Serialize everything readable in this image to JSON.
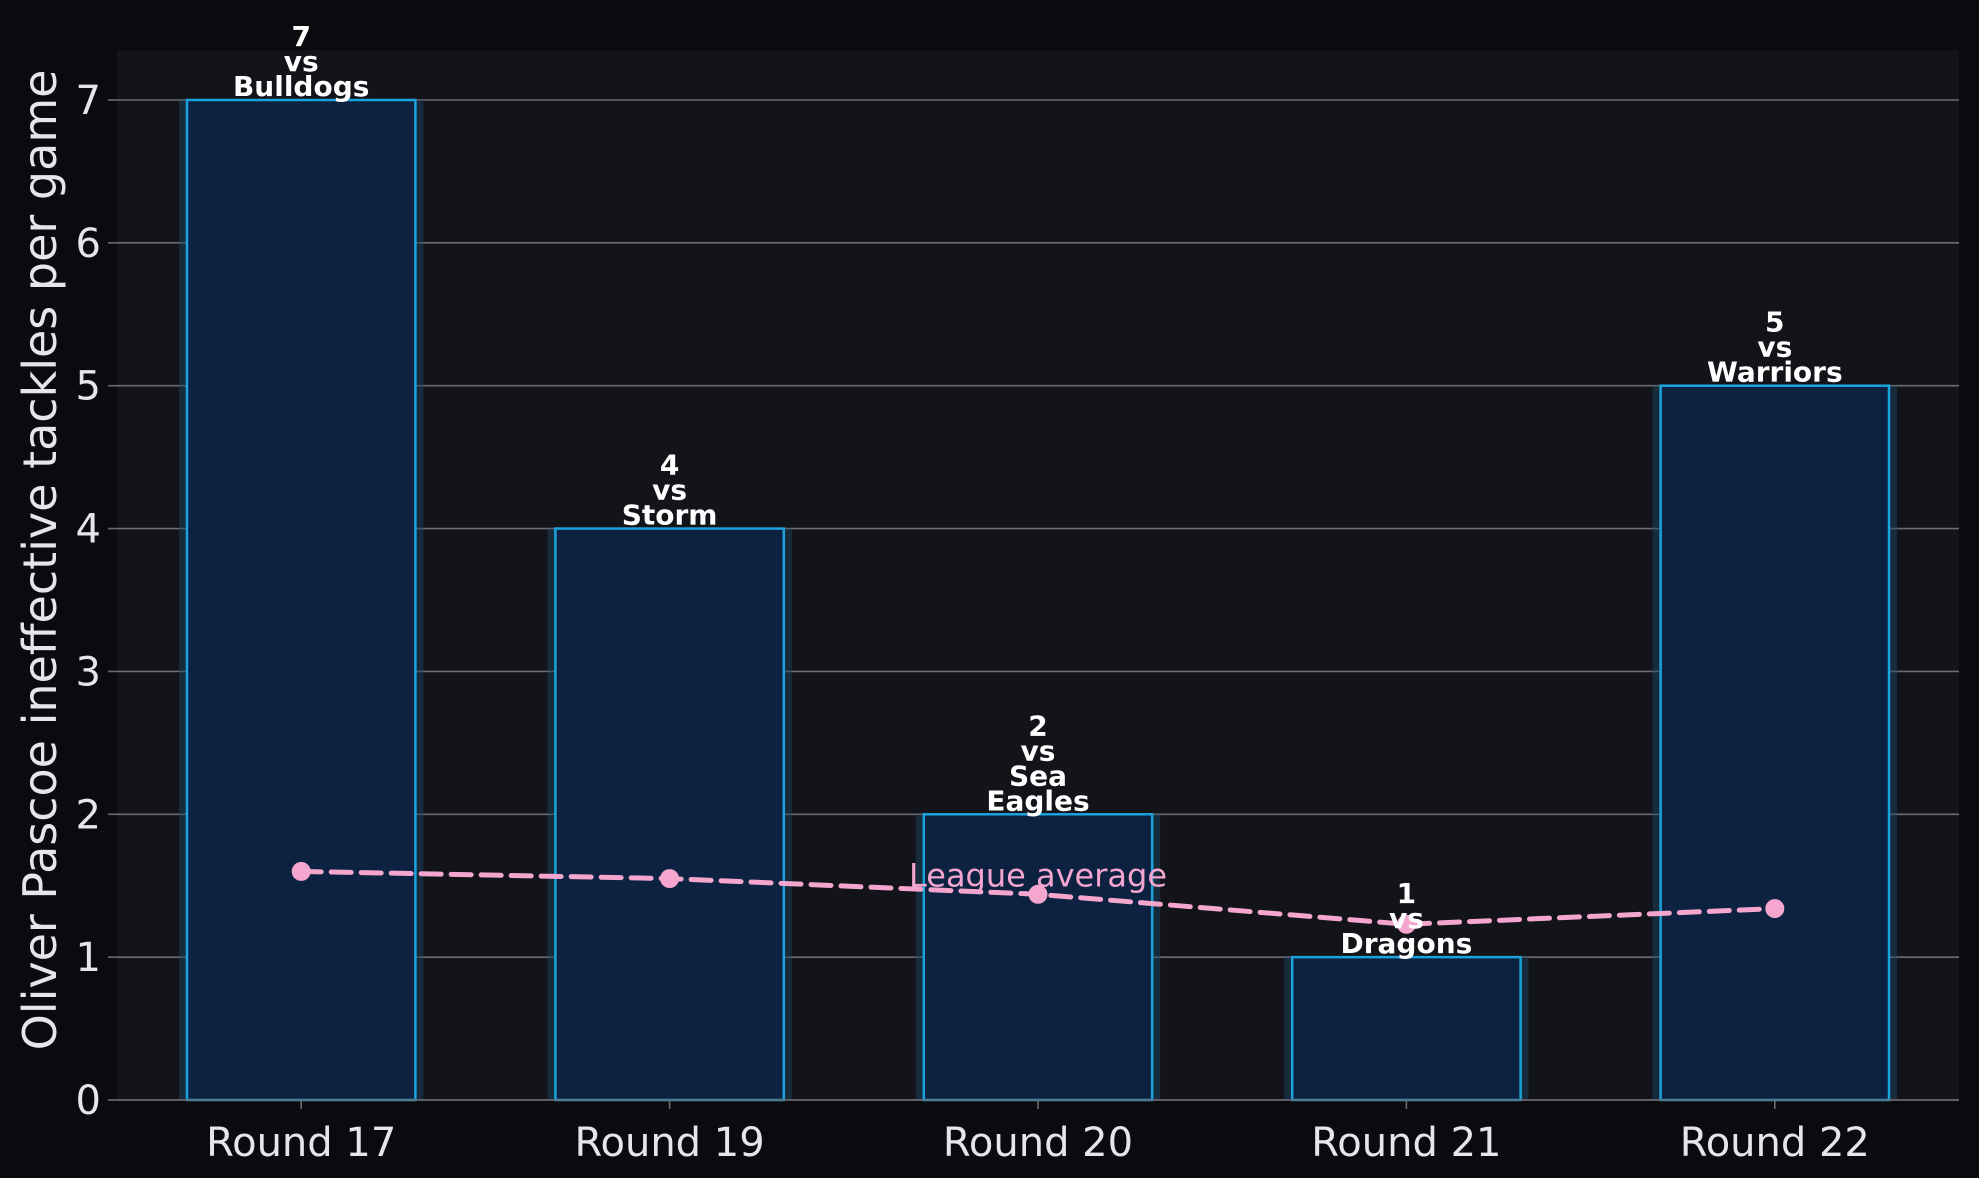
{
  "colors": {
    "figure_background": "#0b0b0f",
    "plot_background": "#13131a",
    "grid": "#6b6b70",
    "bar_fill": "#0c2240",
    "bar_edge": "#1aa3dc",
    "bar_glow": "#1d4a66",
    "line": "#f4a6cf",
    "text": "#e6e6ea",
    "data_label": "#ffffff"
  },
  "chart_data": {
    "type": "bar",
    "categories": [
      "Round 17",
      "Round 19",
      "Round 20",
      "Round 21",
      "Round 22"
    ],
    "series": [
      {
        "values": [
          7,
          4,
          2,
          1,
          5
        ],
        "data_labels": [
          [
            "7",
            "vs",
            "Bulldogs"
          ],
          [
            "4",
            "vs",
            "Storm"
          ],
          [
            "2",
            "vs",
            "Sea",
            "Eagles"
          ],
          [
            "1",
            "vs",
            "Dragons"
          ],
          [
            "5",
            "vs",
            "Warriors"
          ]
        ]
      }
    ],
    "reference_line": {
      "type": "line",
      "style": "dashed",
      "markers": true,
      "values": [
        1.6,
        1.55,
        1.44,
        1.23,
        1.34
      ],
      "annotation": "League average",
      "annotation_category": "Round 20"
    },
    "title": "",
    "xlabel": "",
    "ylabel": "Oliver Pascoe ineffective tackles per game",
    "ylim": [
      0,
      7.35
    ],
    "yticks": [
      0,
      1,
      2,
      3,
      4,
      5,
      6,
      7
    ],
    "grid": "horizontal"
  }
}
